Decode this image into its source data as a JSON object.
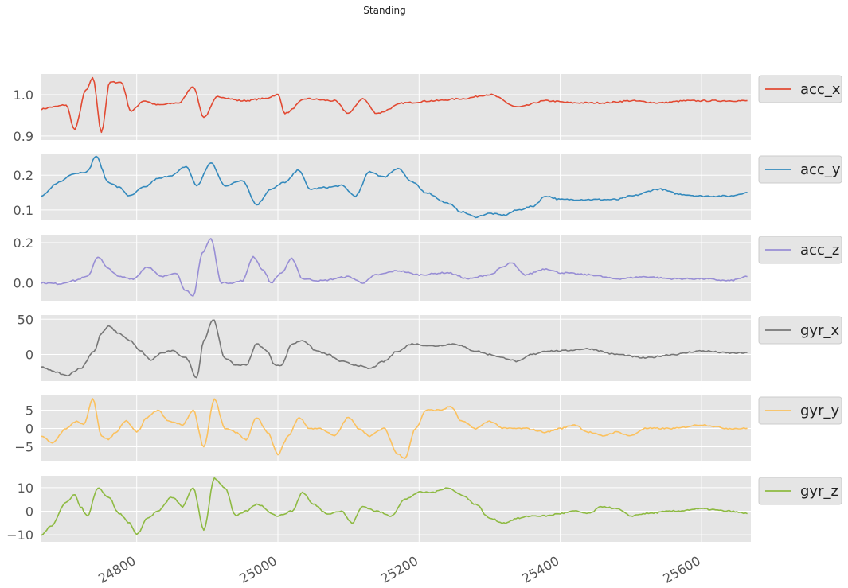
{
  "chart_data": {
    "type": "line",
    "title": "Standing",
    "x_range": [
      24665,
      25670
    ],
    "x_ticks": [
      24800,
      25000,
      25200,
      25400,
      25600
    ],
    "grid": true,
    "legend_placement": "right of each panel",
    "panels": [
      {
        "name": "acc_x",
        "color": "#E24A33",
        "ylim": [
          0.89,
          1.05
        ],
        "yticks": [
          0.9,
          1.0
        ],
        "tick_labels": [
          "0.9",
          "1.0"
        ],
        "keypoints": [
          [
            24665,
            0.965
          ],
          [
            24680,
            0.97
          ],
          [
            24700,
            0.975
          ],
          [
            24712,
            0.915
          ],
          [
            24728,
            1.01
          ],
          [
            24738,
            1.04
          ],
          [
            24750,
            0.91
          ],
          [
            24762,
            1.03
          ],
          [
            24778,
            1.03
          ],
          [
            24792,
            0.96
          ],
          [
            24810,
            0.985
          ],
          [
            24830,
            0.975
          ],
          [
            24860,
            0.98
          ],
          [
            24880,
            1.02
          ],
          [
            24895,
            0.945
          ],
          [
            24915,
            0.995
          ],
          [
            24950,
            0.985
          ],
          [
            24980,
            0.99
          ],
          [
            25000,
            1.0
          ],
          [
            25010,
            0.955
          ],
          [
            25040,
            0.99
          ],
          [
            25080,
            0.985
          ],
          [
            25100,
            0.955
          ],
          [
            25120,
            0.99
          ],
          [
            25140,
            0.955
          ],
          [
            25180,
            0.98
          ],
          [
            25220,
            0.985
          ],
          [
            25260,
            0.99
          ],
          [
            25300,
            1.0
          ],
          [
            25340,
            0.97
          ],
          [
            25380,
            0.985
          ],
          [
            25420,
            0.98
          ],
          [
            25460,
            0.98
          ],
          [
            25500,
            0.985
          ],
          [
            25540,
            0.98
          ],
          [
            25580,
            0.985
          ],
          [
            25620,
            0.985
          ],
          [
            25665,
            0.985
          ]
        ]
      },
      {
        "name": "acc_y",
        "color": "#348ABD",
        "ylim": [
          0.07,
          0.26
        ],
        "yticks": [
          0.1,
          0.2
        ],
        "tick_labels": [
          "0.1",
          "0.2"
        ],
        "keypoints": [
          [
            24665,
            0.14
          ],
          [
            24690,
            0.18
          ],
          [
            24710,
            0.205
          ],
          [
            24730,
            0.21
          ],
          [
            24742,
            0.255
          ],
          [
            24760,
            0.18
          ],
          [
            24775,
            0.165
          ],
          [
            24790,
            0.14
          ],
          [
            24810,
            0.165
          ],
          [
            24830,
            0.19
          ],
          [
            24850,
            0.2
          ],
          [
            24870,
            0.225
          ],
          [
            24885,
            0.17
          ],
          [
            24905,
            0.235
          ],
          [
            24925,
            0.17
          ],
          [
            24950,
            0.185
          ],
          [
            24970,
            0.115
          ],
          [
            24990,
            0.16
          ],
          [
            25010,
            0.18
          ],
          [
            25030,
            0.215
          ],
          [
            25045,
            0.16
          ],
          [
            25070,
            0.165
          ],
          [
            25090,
            0.17
          ],
          [
            25110,
            0.14
          ],
          [
            25130,
            0.21
          ],
          [
            25150,
            0.195
          ],
          [
            25170,
            0.22
          ],
          [
            25190,
            0.18
          ],
          [
            25210,
            0.15
          ],
          [
            25240,
            0.12
          ],
          [
            25260,
            0.095
          ],
          [
            25280,
            0.08
          ],
          [
            25300,
            0.09
          ],
          [
            25320,
            0.085
          ],
          [
            25340,
            0.1
          ],
          [
            25360,
            0.11
          ],
          [
            25380,
            0.14
          ],
          [
            25400,
            0.13
          ],
          [
            25440,
            0.13
          ],
          [
            25480,
            0.13
          ],
          [
            25500,
            0.14
          ],
          [
            25540,
            0.16
          ],
          [
            25570,
            0.145
          ],
          [
            25600,
            0.14
          ],
          [
            25640,
            0.14
          ],
          [
            25665,
            0.15
          ]
        ]
      },
      {
        "name": "acc_z",
        "color": "#988ED5",
        "ylim": [
          -0.09,
          0.24
        ],
        "yticks": [
          0.0,
          0.2
        ],
        "tick_labels": [
          "0.0",
          "0.2"
        ],
        "keypoints": [
          [
            24665,
            0.0
          ],
          [
            24690,
            -0.005
          ],
          [
            24710,
            0.01
          ],
          [
            24730,
            0.03
          ],
          [
            24745,
            0.13
          ],
          [
            24760,
            0.07
          ],
          [
            24775,
            0.03
          ],
          [
            24795,
            0.02
          ],
          [
            24815,
            0.08
          ],
          [
            24835,
            0.03
          ],
          [
            24855,
            0.05
          ],
          [
            24870,
            -0.04
          ],
          [
            24880,
            -0.07
          ],
          [
            24893,
            0.15
          ],
          [
            24905,
            0.22
          ],
          [
            24920,
            0.0
          ],
          [
            24935,
            0.0
          ],
          [
            24950,
            0.01
          ],
          [
            24965,
            0.13
          ],
          [
            24980,
            0.06
          ],
          [
            24990,
            0.0
          ],
          [
            25005,
            0.05
          ],
          [
            25020,
            0.12
          ],
          [
            25035,
            0.02
          ],
          [
            25060,
            0.01
          ],
          [
            25100,
            0.03
          ],
          [
            25120,
            0.0
          ],
          [
            25140,
            0.04
          ],
          [
            25170,
            0.06
          ],
          [
            25200,
            0.04
          ],
          [
            25240,
            0.05
          ],
          [
            25270,
            0.02
          ],
          [
            25300,
            0.04
          ],
          [
            25320,
            0.08
          ],
          [
            25330,
            0.1
          ],
          [
            25350,
            0.04
          ],
          [
            25380,
            0.07
          ],
          [
            25400,
            0.05
          ],
          [
            25440,
            0.04
          ],
          [
            25480,
            0.02
          ],
          [
            25520,
            0.03
          ],
          [
            25560,
            0.02
          ],
          [
            25600,
            0.02
          ],
          [
            25640,
            0.01
          ],
          [
            25665,
            0.03
          ]
        ]
      },
      {
        "name": "gyr_x",
        "color": "#777777",
        "ylim": [
          -38,
          56
        ],
        "yticks": [
          0,
          50
        ],
        "tick_labels": [
          "0",
          "50"
        ],
        "keypoints": [
          [
            24665,
            -18
          ],
          [
            24685,
            -25
          ],
          [
            24700,
            -30
          ],
          [
            24720,
            -20
          ],
          [
            24740,
            5
          ],
          [
            24750,
            30
          ],
          [
            24760,
            40
          ],
          [
            24775,
            30
          ],
          [
            24790,
            20
          ],
          [
            24805,
            5
          ],
          [
            24820,
            -8
          ],
          [
            24835,
            2
          ],
          [
            24850,
            5
          ],
          [
            24870,
            -5
          ],
          [
            24885,
            -33
          ],
          [
            24895,
            20
          ],
          [
            24908,
            50
          ],
          [
            24925,
            -5
          ],
          [
            24940,
            -15
          ],
          [
            24955,
            -15
          ],
          [
            24970,
            15
          ],
          [
            24985,
            5
          ],
          [
            24995,
            -15
          ],
          [
            25005,
            -15
          ],
          [
            25020,
            15
          ],
          [
            25035,
            20
          ],
          [
            25055,
            5
          ],
          [
            25070,
            0
          ],
          [
            25090,
            -10
          ],
          [
            25110,
            -15
          ],
          [
            25130,
            -20
          ],
          [
            25150,
            -10
          ],
          [
            25170,
            5
          ],
          [
            25190,
            15
          ],
          [
            25220,
            12
          ],
          [
            25250,
            15
          ],
          [
            25280,
            5
          ],
          [
            25300,
            0
          ],
          [
            25320,
            -5
          ],
          [
            25340,
            -10
          ],
          [
            25360,
            0
          ],
          [
            25380,
            5
          ],
          [
            25400,
            5
          ],
          [
            25440,
            8
          ],
          [
            25480,
            0
          ],
          [
            25520,
            -5
          ],
          [
            25560,
            0
          ],
          [
            25600,
            5
          ],
          [
            25640,
            2
          ],
          [
            25665,
            2
          ]
        ]
      },
      {
        "name": "gyr_y",
        "color": "#FBC15E",
        "ylim": [
          -9,
          9
        ],
        "yticks": [
          -5,
          0,
          5
        ],
        "tick_labels": [
          "−5",
          "0",
          "5"
        ],
        "keypoints": [
          [
            24665,
            -2
          ],
          [
            24680,
            -4
          ],
          [
            24700,
            0
          ],
          [
            24715,
            2
          ],
          [
            24725,
            1
          ],
          [
            24738,
            8
          ],
          [
            24750,
            -2
          ],
          [
            24760,
            -3
          ],
          [
            24770,
            -1
          ],
          [
            24785,
            2
          ],
          [
            24800,
            -1
          ],
          [
            24815,
            3
          ],
          [
            24830,
            5
          ],
          [
            24845,
            2
          ],
          [
            24865,
            1
          ],
          [
            24880,
            5
          ],
          [
            24895,
            -5
          ],
          [
            24910,
            8
          ],
          [
            24925,
            0
          ],
          [
            24940,
            -1
          ],
          [
            24955,
            -3
          ],
          [
            24970,
            3
          ],
          [
            24985,
            -1
          ],
          [
            25000,
            -7
          ],
          [
            25015,
            -2
          ],
          [
            25030,
            3
          ],
          [
            25045,
            0
          ],
          [
            25060,
            0
          ],
          [
            25080,
            -2
          ],
          [
            25100,
            3
          ],
          [
            25115,
            0
          ],
          [
            25130,
            -2
          ],
          [
            25150,
            0
          ],
          [
            25170,
            -7
          ],
          [
            25180,
            -8
          ],
          [
            25195,
            0
          ],
          [
            25210,
            5
          ],
          [
            25230,
            5
          ],
          [
            25245,
            6
          ],
          [
            25260,
            2
          ],
          [
            25280,
            0
          ],
          [
            25300,
            2
          ],
          [
            25320,
            0
          ],
          [
            25350,
            0
          ],
          [
            25380,
            -1
          ],
          [
            25400,
            0
          ],
          [
            25420,
            1
          ],
          [
            25440,
            -1
          ],
          [
            25460,
            -2
          ],
          [
            25480,
            -1
          ],
          [
            25500,
            -2
          ],
          [
            25520,
            0
          ],
          [
            25560,
            0
          ],
          [
            25600,
            1
          ],
          [
            25640,
            0
          ],
          [
            25665,
            0
          ]
        ]
      },
      {
        "name": "gyr_z",
        "color": "#8EBA42",
        "ylim": [
          -13,
          15
        ],
        "yticks": [
          -10,
          0,
          10
        ],
        "tick_labels": [
          "−10",
          "0",
          "10"
        ],
        "keypoints": [
          [
            24665,
            -10
          ],
          [
            24680,
            -6
          ],
          [
            24700,
            4
          ],
          [
            24712,
            7
          ],
          [
            24720,
            2
          ],
          [
            24730,
            -2
          ],
          [
            24745,
            10
          ],
          [
            24760,
            6
          ],
          [
            24775,
            -1
          ],
          [
            24790,
            -5
          ],
          [
            24800,
            -10
          ],
          [
            24815,
            -3
          ],
          [
            24830,
            0
          ],
          [
            24850,
            6
          ],
          [
            24865,
            2
          ],
          [
            24880,
            10
          ],
          [
            24895,
            -8
          ],
          [
            24910,
            14
          ],
          [
            24925,
            10
          ],
          [
            24940,
            -2
          ],
          [
            24955,
            0
          ],
          [
            24970,
            3
          ],
          [
            25000,
            -2
          ],
          [
            25020,
            0
          ],
          [
            25035,
            8
          ],
          [
            25050,
            3
          ],
          [
            25070,
            -1
          ],
          [
            25090,
            0
          ],
          [
            25105,
            -5
          ],
          [
            25120,
            2
          ],
          [
            25140,
            0
          ],
          [
            25160,
            -2
          ],
          [
            25180,
            5
          ],
          [
            25200,
            8
          ],
          [
            25220,
            8
          ],
          [
            25240,
            10
          ],
          [
            25260,
            7
          ],
          [
            25280,
            3
          ],
          [
            25300,
            -3
          ],
          [
            25320,
            -5
          ],
          [
            25340,
            -3
          ],
          [
            25360,
            -2
          ],
          [
            25380,
            -2
          ],
          [
            25400,
            -1
          ],
          [
            25420,
            0
          ],
          [
            25440,
            -1
          ],
          [
            25460,
            2
          ],
          [
            25480,
            1
          ],
          [
            25500,
            -2
          ],
          [
            25520,
            -1
          ],
          [
            25560,
            0
          ],
          [
            25600,
            1
          ],
          [
            25640,
            0
          ],
          [
            25665,
            -1
          ]
        ]
      }
    ]
  }
}
